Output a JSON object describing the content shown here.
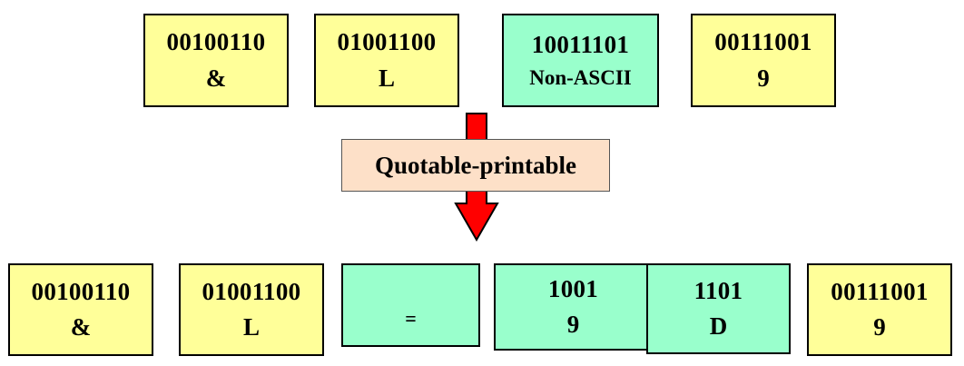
{
  "colors": {
    "printable": "#ffff99",
    "non_ascii": "#99ffcc",
    "arrow": "#ff0000",
    "label_bg": "#fde0c8"
  },
  "top_row": [
    {
      "bits": "00100110",
      "char": "&"
    },
    {
      "bits": "01001100",
      "char": "L"
    },
    {
      "bits": "10011101",
      "char": "Non-ASCII"
    },
    {
      "bits": "00111001",
      "char": "9"
    }
  ],
  "encoding_label": "Quotable-printable",
  "bottom_row": [
    {
      "bits": "00100110",
      "char": "&"
    },
    {
      "bits": "01001100",
      "char": "L"
    },
    {
      "bits": "",
      "char": "="
    },
    {
      "bits": "1001",
      "char": "9"
    },
    {
      "bits": "1101",
      "char": "D"
    },
    {
      "bits": "00111001",
      "char": "9"
    }
  ]
}
